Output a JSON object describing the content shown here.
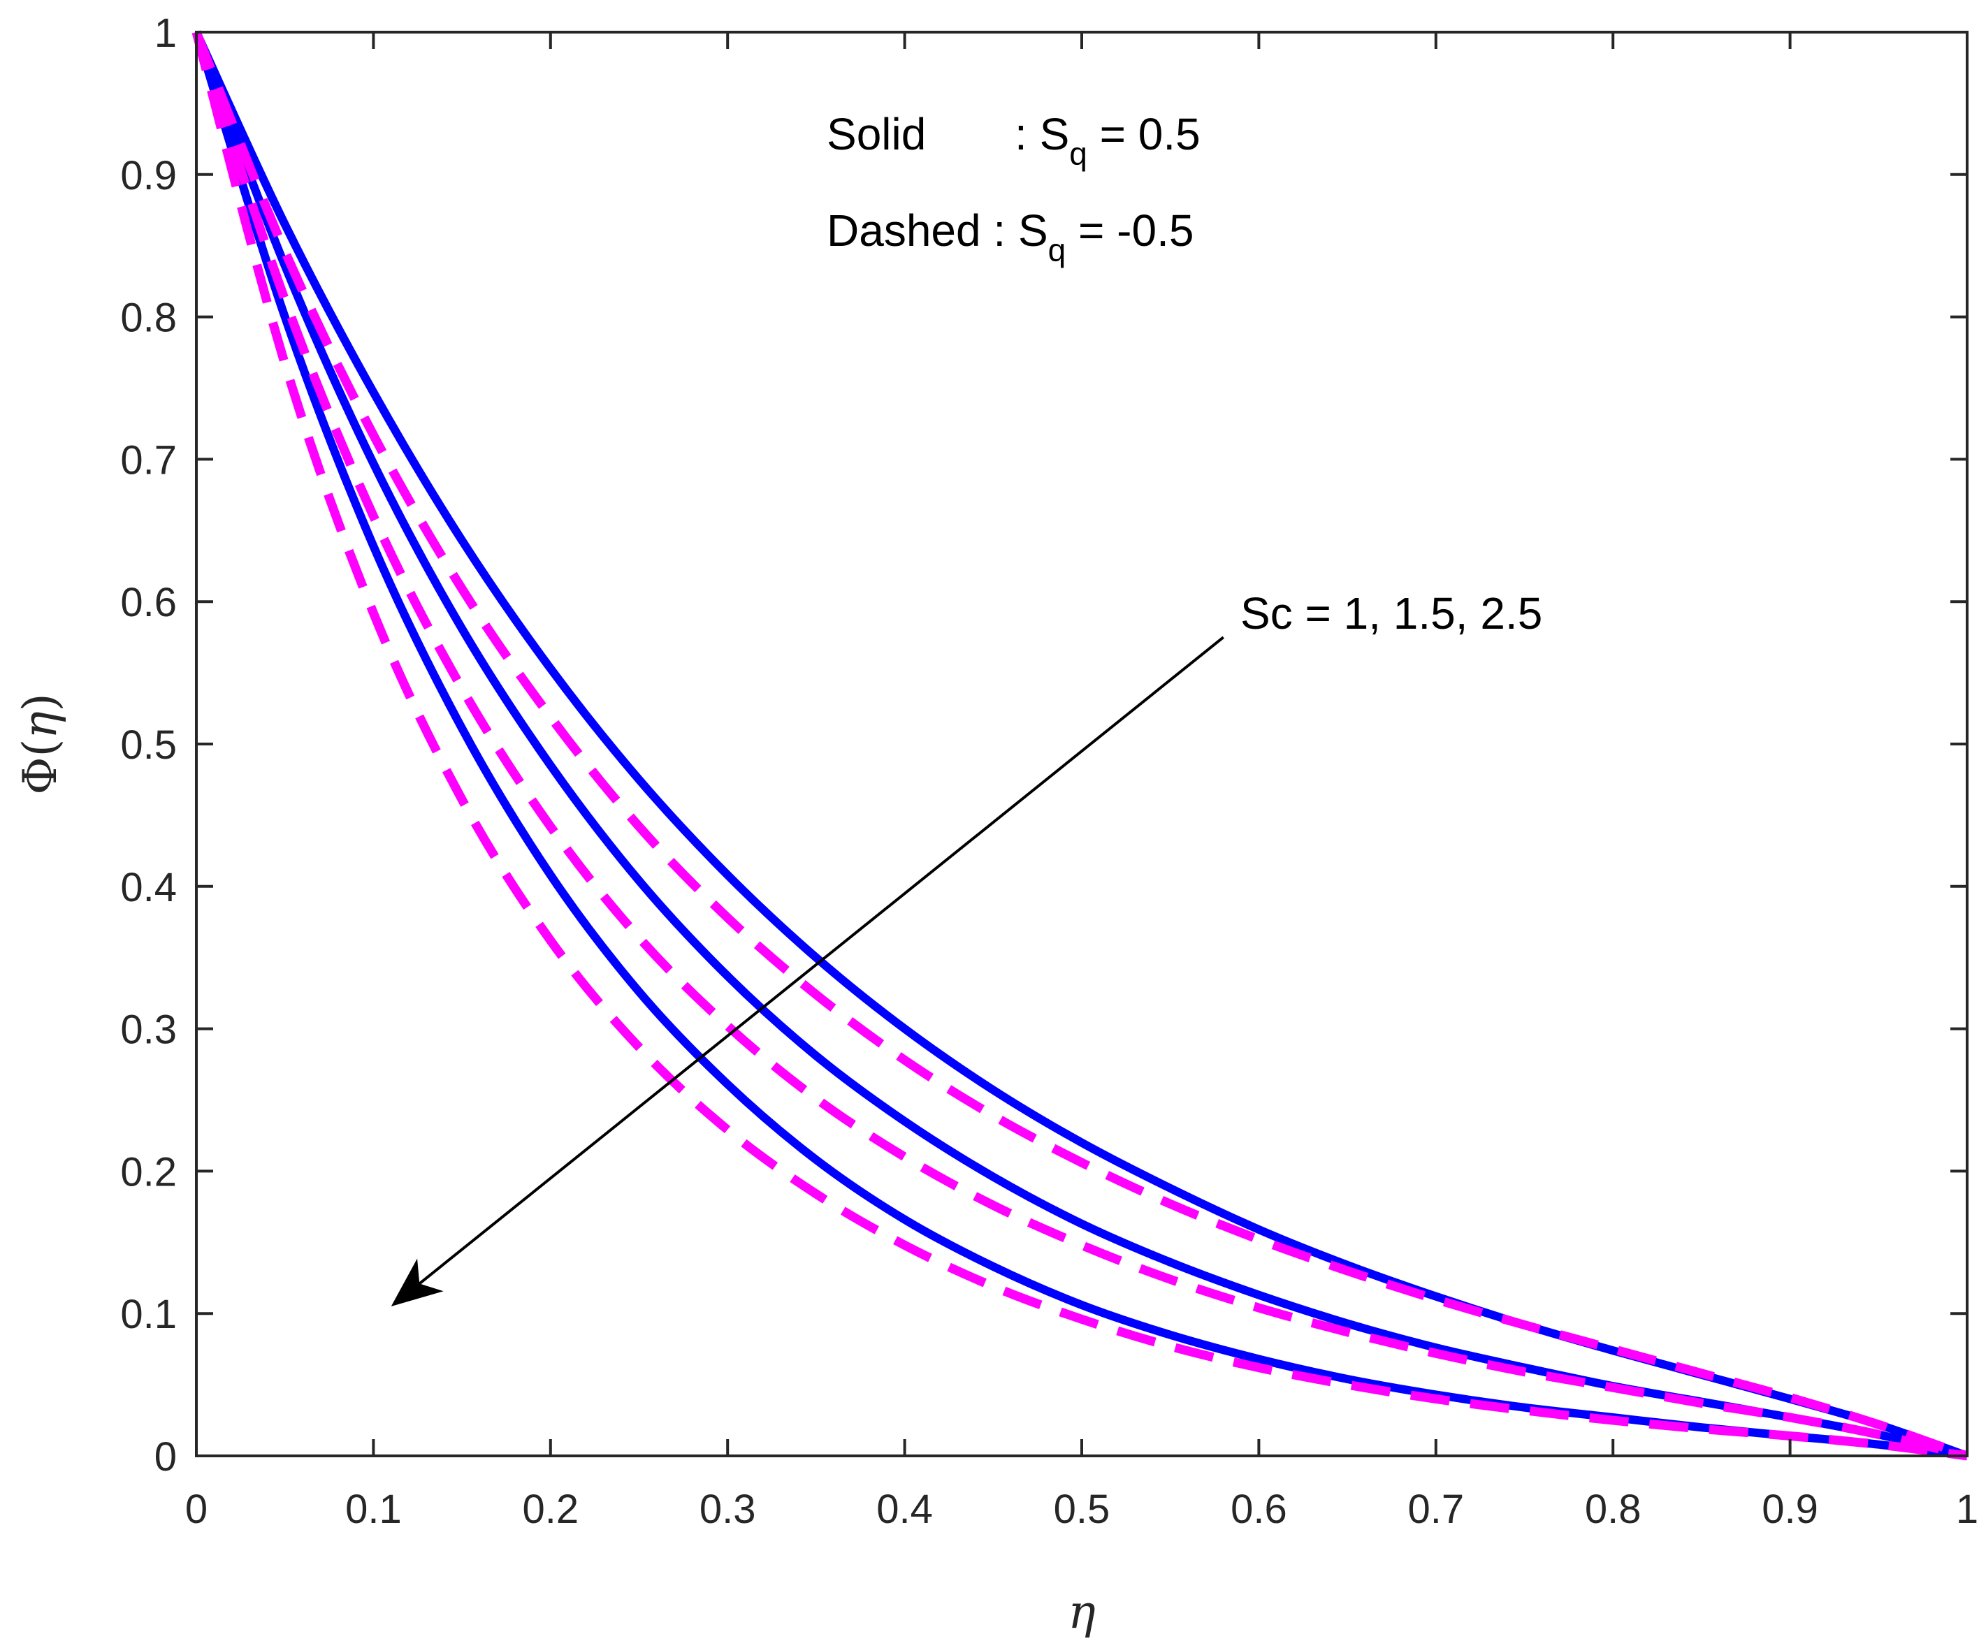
{
  "chart_data": {
    "type": "line",
    "title": "",
    "xlabel": "η",
    "ylabel_prefix": "Φ(",
    "ylabel_var": "η",
    "ylabel_suffix": ")",
    "xlim": [
      0,
      1
    ],
    "ylim": [
      0,
      1
    ],
    "xticks": [
      0,
      0.1,
      0.2,
      0.3,
      0.4,
      0.5,
      0.6,
      0.7,
      0.8,
      0.9,
      1
    ],
    "xtick_labels": [
      "0",
      "0.1",
      "0.2",
      "0.3",
      "0.4",
      "0.5",
      "0.6",
      "0.7",
      "0.8",
      "0.9",
      "1"
    ],
    "yticks": [
      0,
      0.1,
      0.2,
      0.3,
      0.4,
      0.5,
      0.6,
      0.7,
      0.8,
      0.9,
      1
    ],
    "ytick_labels": [
      "0",
      "0.1",
      "0.2",
      "0.3",
      "0.4",
      "0.5",
      "0.6",
      "0.7",
      "0.8",
      "0.9",
      "1"
    ],
    "grid": false,
    "x": [
      0,
      0.05,
      0.1,
      0.15,
      0.2,
      0.25,
      0.3,
      0.35,
      0.4,
      0.45,
      0.5,
      0.55,
      0.6,
      0.65,
      0.7,
      0.75,
      0.8,
      0.85,
      0.9,
      0.95,
      1
    ],
    "series": [
      {
        "name": "Sc = 1, Sq = 0.5",
        "style": "solid",
        "color": "#0000ff",
        "values": [
          1,
          0.865,
          0.747,
          0.643,
          0.553,
          0.475,
          0.408,
          0.35,
          0.3,
          0.257,
          0.22,
          0.188,
          0.159,
          0.134,
          0.112,
          0.092,
          0.074,
          0.057,
          0.04,
          0.022,
          0
        ]
      },
      {
        "name": "Sc = 1.5, Sq = 0.5",
        "style": "solid",
        "color": "#0000ff",
        "values": [
          1,
          0.836,
          0.697,
          0.581,
          0.485,
          0.404,
          0.337,
          0.281,
          0.235,
          0.196,
          0.163,
          0.136,
          0.113,
          0.093,
          0.076,
          0.062,
          0.049,
          0.038,
          0.027,
          0.015,
          0
        ]
      },
      {
        "name": "Sc = 2.5, Sq = 0.5",
        "style": "solid",
        "color": "#0000ff",
        "values": [
          1,
          0.8,
          0.639,
          0.511,
          0.408,
          0.326,
          0.261,
          0.208,
          0.166,
          0.133,
          0.106,
          0.085,
          0.068,
          0.054,
          0.043,
          0.034,
          0.027,
          0.02,
          0.014,
          0.008,
          0
        ]
      },
      {
        "name": "Sc = 1, Sq = -0.5",
        "style": "dashed",
        "color": "#ff00ff",
        "values": [
          1,
          0.846,
          0.717,
          0.609,
          0.519,
          0.442,
          0.378,
          0.324,
          0.278,
          0.239,
          0.206,
          0.177,
          0.152,
          0.13,
          0.11,
          0.092,
          0.075,
          0.058,
          0.041,
          0.022,
          0
        ]
      },
      {
        "name": "Sc = 1.5, Sq = -0.5",
        "style": "dashed",
        "color": "#ff00ff",
        "values": [
          1,
          0.812,
          0.66,
          0.539,
          0.442,
          0.364,
          0.302,
          0.251,
          0.21,
          0.176,
          0.148,
          0.124,
          0.104,
          0.087,
          0.072,
          0.059,
          0.048,
          0.037,
          0.027,
          0.015,
          0
        ]
      },
      {
        "name": "Sc = 2.5, Sq = -0.5",
        "style": "dashed",
        "color": "#ff00ff",
        "values": [
          1,
          0.767,
          0.592,
          0.461,
          0.362,
          0.287,
          0.229,
          0.184,
          0.148,
          0.119,
          0.096,
          0.077,
          0.062,
          0.05,
          0.04,
          0.032,
          0.025,
          0.019,
          0.014,
          0.008,
          0
        ]
      }
    ],
    "legend_text": {
      "solid_label": "Solid",
      "solid_sep": ": S",
      "solid_sub": "q",
      "solid_value": " = 0.5",
      "dashed_label": "Dashed : S",
      "dashed_sub": "q",
      "dashed_value": " = -0.5"
    },
    "arrow": {
      "label": "Sc = 1, 1.5, 2.5",
      "from": [
        0.58,
        0.575
      ],
      "to": [
        0.11,
        0.105
      ]
    }
  }
}
